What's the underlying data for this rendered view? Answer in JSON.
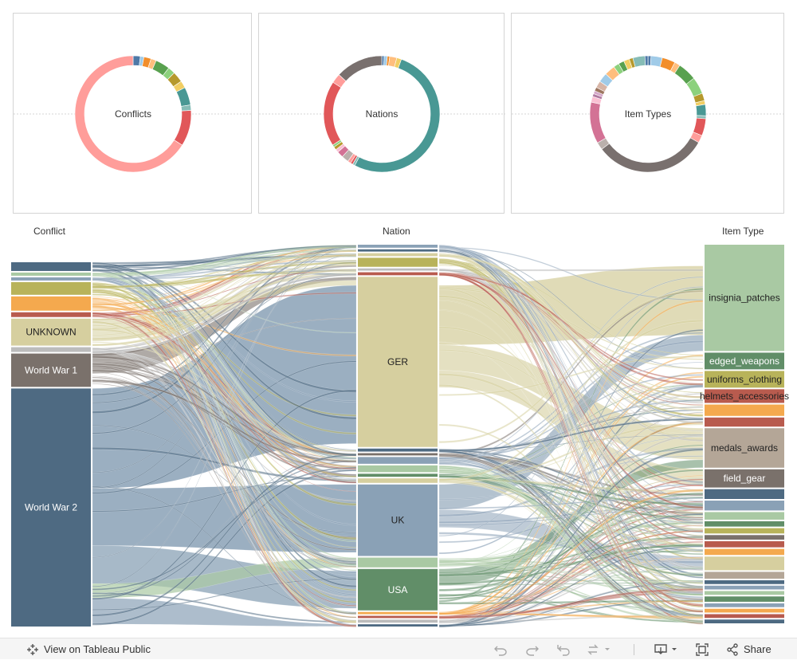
{
  "toolbar": {
    "view_label": "View on Tableau Public",
    "share_label": "Share"
  },
  "colors": {
    "slate": "#4e6a82",
    "taupe": "#7a716b",
    "tan": "#d6cf9f",
    "brick": "#b85b4e",
    "orange": "#f4a94e",
    "olive": "#b8b35a",
    "sage": "#a9c9a3",
    "steel": "#8aa1b6",
    "green": "#618e68",
    "pink": "#f6a09a",
    "teal": "#4d9c95",
    "red": "#e05659",
    "rose": "#d873a0",
    "grey": "#bcbcbc",
    "lightgreen": "#8fd07c",
    "sky": "#9fc9e8"
  },
  "chart_data": [
    {
      "type": "pie",
      "title": "Conflicts",
      "slices": [
        {
          "color": "#4e79a7",
          "value": 2.0
        },
        {
          "color": "#a0cbe8",
          "value": 1.0
        },
        {
          "color": "#f28e2b",
          "value": 2.0
        },
        {
          "color": "#ffbe7d",
          "value": 1.5
        },
        {
          "color": "#59a14f",
          "value": 4.0
        },
        {
          "color": "#8cd17d",
          "value": 2.0
        },
        {
          "color": "#b6992d",
          "value": 3.0
        },
        {
          "color": "#f1ce63",
          "value": 2.0
        },
        {
          "color": "#499894",
          "value": 5.0
        },
        {
          "color": "#86bcb6",
          "value": 1.5
        },
        {
          "color": "#e15759",
          "value": 10.0
        },
        {
          "color": "#ff9d9a",
          "value": 66.0
        }
      ]
    },
    {
      "type": "pie",
      "title": "Nations",
      "slices": [
        {
          "color": "#4e79a7",
          "value": 0.6
        },
        {
          "color": "#a0cbe8",
          "value": 0.8
        },
        {
          "color": "#f28e2b",
          "value": 0.6
        },
        {
          "color": "#ffbe7d",
          "value": 1.8
        },
        {
          "color": "#f1ce63",
          "value": 1.2
        },
        {
          "color": "#499894",
          "value": 47.5
        },
        {
          "color": "#86bcb6",
          "value": 0.6
        },
        {
          "color": "#e15759",
          "value": 0.6
        },
        {
          "color": "#ff9d9a",
          "value": 0.8
        },
        {
          "color": "#bab0ac",
          "value": 1.8
        },
        {
          "color": "#d37295",
          "value": 1.6
        },
        {
          "color": "#fabfd2",
          "value": 0.8
        },
        {
          "color": "#b6992d",
          "value": 0.8
        },
        {
          "color": "#8cd17d",
          "value": 0.6
        },
        {
          "color": "#e15759",
          "value": 16.5
        },
        {
          "color": "#ff9d9a",
          "value": 2.4
        },
        {
          "color": "#79706e",
          "value": 12.0
        }
      ]
    },
    {
      "type": "pie",
      "title": "Item Types",
      "slices": [
        {
          "color": "#4e79a7",
          "value": 0.8
        },
        {
          "color": "#a0cbe8",
          "value": 3.0
        },
        {
          "color": "#f28e2b",
          "value": 3.5
        },
        {
          "color": "#ffbe7d",
          "value": 1.5
        },
        {
          "color": "#59a14f",
          "value": 5.0
        },
        {
          "color": "#8cd17d",
          "value": 4.5
        },
        {
          "color": "#b6992d",
          "value": 2.0
        },
        {
          "color": "#f1ce63",
          "value": 1.0
        },
        {
          "color": "#499894",
          "value": 3.0
        },
        {
          "color": "#86bcb6",
          "value": 0.8
        },
        {
          "color": "#e15759",
          "value": 4.5
        },
        {
          "color": "#ff9d9a",
          "value": 2.0
        },
        {
          "color": "#79706e",
          "value": 30.0
        },
        {
          "color": "#bab0ac",
          "value": 2.0
        },
        {
          "color": "#d37295",
          "value": 11.0
        },
        {
          "color": "#fabfd2",
          "value": 1.5
        },
        {
          "color": "#b07aa1",
          "value": 0.8
        },
        {
          "color": "#d4a6c8",
          "value": 0.8
        },
        {
          "color": "#9d7660",
          "value": 1.0
        },
        {
          "color": "#d7b5a6",
          "value": 1.8
        },
        {
          "color": "#a0cbe8",
          "value": 2.5
        },
        {
          "color": "#ffbe7d",
          "value": 2.8
        },
        {
          "color": "#8cd17d",
          "value": 1.5
        },
        {
          "color": "#59a14f",
          "value": 1.5
        },
        {
          "color": "#f1ce63",
          "value": 1.5
        },
        {
          "color": "#b6992d",
          "value": 1.0
        },
        {
          "color": "#86bcb6",
          "value": 3.2
        },
        {
          "color": "#4e79a7",
          "value": 0.8
        }
      ]
    },
    {
      "type": "sankey",
      "columns": [
        {
          "title": "Conflict",
          "nodes": [
            {
              "label": "",
              "color": "slate",
              "value": 11
            },
            {
              "label": "",
              "color": "sage",
              "value": 4
            },
            {
              "label": "",
              "color": "steel",
              "value": 4
            },
            {
              "label": "",
              "color": "olive",
              "value": 16
            },
            {
              "label": "",
              "color": "orange",
              "value": 18
            },
            {
              "label": "",
              "color": "brick",
              "value": 6
            },
            {
              "label": "UNKNOWN",
              "color": "tan",
              "value": 34
            },
            {
              "label": "",
              "color": "grey",
              "value": 6
            },
            {
              "label": "World War 1",
              "color": "taupe",
              "value": 42
            },
            {
              "label": "World War 2",
              "color": "slate",
              "value": 300
            }
          ]
        },
        {
          "title": "Nation",
          "nodes": [
            {
              "label": "",
              "color": "steel",
              "value": 4
            },
            {
              "label": "",
              "color": "slate",
              "value": 3
            },
            {
              "label": "",
              "color": "tan",
              "value": 4
            },
            {
              "label": "",
              "color": "olive",
              "value": 12
            },
            {
              "label": "",
              "color": "grey",
              "value": 3
            },
            {
              "label": "",
              "color": "brick",
              "value": 4
            },
            {
              "label": "GER",
              "color": "tan",
              "value": 226
            },
            {
              "label": "",
              "color": "slate",
              "value": 4
            },
            {
              "label": "",
              "color": "taupe",
              "value": 3
            },
            {
              "label": "",
              "color": "steel",
              "value": 9
            },
            {
              "label": "",
              "color": "sage",
              "value": 9
            },
            {
              "label": "",
              "color": "green",
              "value": 4
            },
            {
              "label": "",
              "color": "tan",
              "value": 6
            },
            {
              "label": "UK",
              "color": "steel",
              "value": 95
            },
            {
              "label": "",
              "color": "sage",
              "value": 13
            },
            {
              "label": "USA",
              "color": "green",
              "value": 55
            },
            {
              "label": "",
              "color": "orange",
              "value": 3
            },
            {
              "label": "",
              "color": "brick",
              "value": 3
            },
            {
              "label": "",
              "color": "grey",
              "value": 4
            },
            {
              "label": "",
              "color": "slate",
              "value": 3
            }
          ]
        },
        {
          "title": "Item Type",
          "nodes": [
            {
              "label": "insignia_patches",
              "color": "sage",
              "value": 140
            },
            {
              "label": "edged_weapons",
              "color": "green",
              "value": 22
            },
            {
              "label": "uniforms_clothing",
              "color": "olive",
              "value": 22
            },
            {
              "label": "helmets_accessories",
              "color": "brick",
              "value": 18
            },
            {
              "label": "",
              "color": "orange",
              "value": 15
            },
            {
              "label": "",
              "color": "brick",
              "value": 12
            },
            {
              "label": "medals_awards",
              "color": "taupe_light",
              "value": 52
            },
            {
              "label": "field_gear",
              "color": "taupe",
              "value": 24
            },
            {
              "label": "",
              "color": "slate",
              "value": 13
            },
            {
              "label": "",
              "color": "steel",
              "value": 13
            },
            {
              "label": "",
              "color": "sage",
              "value": 10
            },
            {
              "label": "",
              "color": "green",
              "value": 7
            },
            {
              "label": "",
              "color": "olive",
              "value": 7
            },
            {
              "label": "",
              "color": "taupe",
              "value": 6
            },
            {
              "label": "",
              "color": "brick",
              "value": 8
            },
            {
              "label": "",
              "color": "orange",
              "value": 8
            },
            {
              "label": "",
              "color": "tan",
              "value": 18
            },
            {
              "label": "",
              "color": "taupe_light",
              "value": 9
            },
            {
              "label": "",
              "color": "slate",
              "value": 5
            },
            {
              "label": "",
              "color": "steel",
              "value": 5
            },
            {
              "label": "",
              "color": "sage",
              "value": 5
            },
            {
              "label": "",
              "color": "green",
              "value": 7
            },
            {
              "label": "",
              "color": "steel",
              "value": 5
            },
            {
              "label": "",
              "color": "orange",
              "value": 5
            },
            {
              "label": "",
              "color": "brick",
              "value": 5
            },
            {
              "label": "",
              "color": "slate",
              "value": 5
            }
          ]
        }
      ]
    }
  ]
}
